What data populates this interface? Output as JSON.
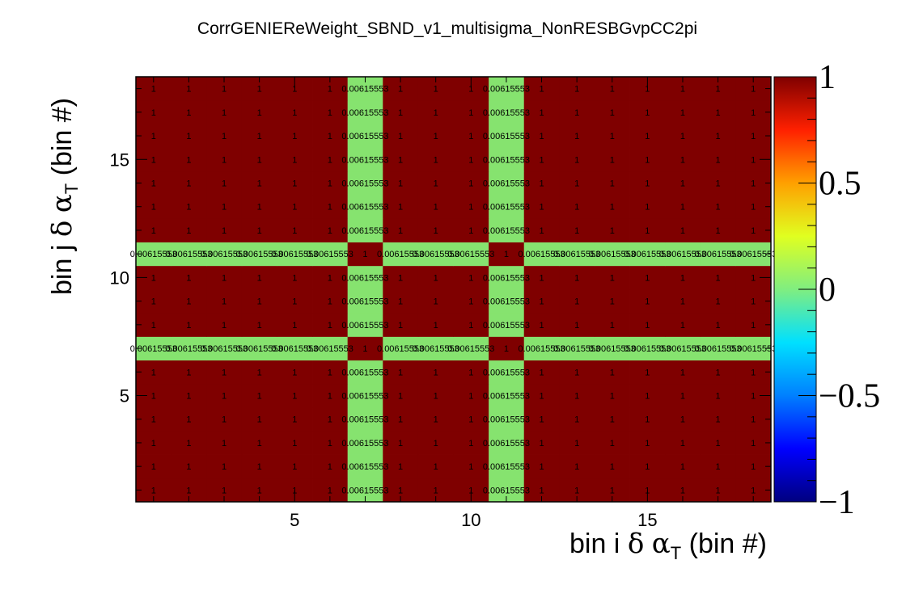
{
  "chart_data": {
    "type": "heatmap",
    "title": "CorrGENIEReWeight_SBND_v1_multisigma_NonRESBGvpCC2pi",
    "xlabel": {
      "pre": "bin i ",
      "delta": "δ",
      "alpha": "α",
      "sub": "T",
      "post": " (bin #)"
    },
    "ylabel": {
      "pre": "bin j ",
      "delta": "δ",
      "alpha": "α",
      "sub": "T",
      "post": " (bin #)"
    },
    "nbins_x": 18,
    "nbins_y": 18,
    "xlim": [
      0.5,
      18.5
    ],
    "ylim": [
      0.5,
      18.5
    ],
    "x_ticks": [
      5,
      10,
      15
    ],
    "y_ticks": [
      5,
      10,
      15
    ],
    "zlim": [
      -1,
      1
    ],
    "palette_ticks": [
      "1",
      "0.5",
      "0",
      "−0.5",
      "−1"
    ],
    "low_corr_bins": [
      7,
      11
    ],
    "low_corr_value": 0.00615553,
    "low_corr_label": "0.00615553",
    "high_corr_value": 1,
    "high_corr_label": "1",
    "colors": {
      "high": "#7f0000",
      "low": "#86e36f",
      "frame": "#000000"
    }
  }
}
